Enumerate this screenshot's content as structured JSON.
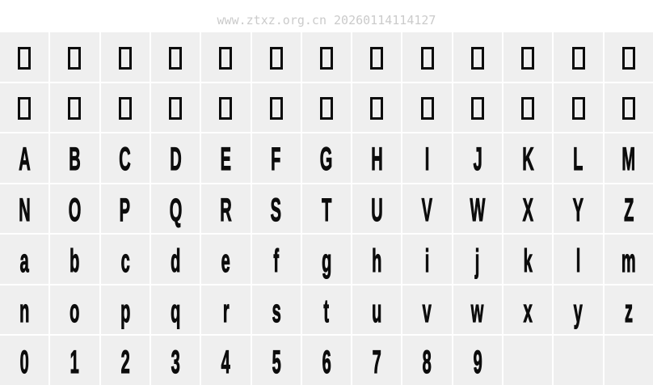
{
  "watermark": {
    "text": "www.ztxz.org.cn 20260114114127"
  },
  "colors": {
    "cell_bg": "#efefef",
    "gap": "#ffffff",
    "glyph": "#0c0c0c",
    "watermark": "#cbcbcb"
  },
  "glyph_grid": {
    "columns": 13,
    "rows": [
      {
        "name": "missing-glyphs-row-1",
        "type": "notdef",
        "chars": "",
        "count": 13
      },
      {
        "name": "missing-glyphs-row-2",
        "type": "notdef",
        "chars": "",
        "count": 13
      },
      {
        "name": "uppercase-a-m",
        "type": "char",
        "chars": "ABCDEFGHIJKLM"
      },
      {
        "name": "uppercase-n-z",
        "type": "char",
        "chars": "NOPQRSTUVWXYZ"
      },
      {
        "name": "lowercase-a-m",
        "type": "char",
        "chars": "abcdefghijklm"
      },
      {
        "name": "lowercase-n-z",
        "type": "char",
        "chars": "nopqrstuvwxyz"
      },
      {
        "name": "digits-0-9",
        "type": "char",
        "chars": "0123456789"
      }
    ]
  }
}
